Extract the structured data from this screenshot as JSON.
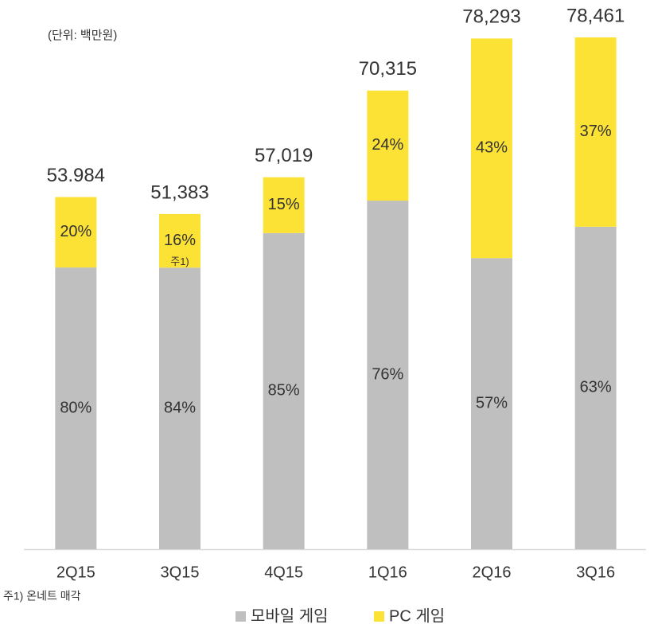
{
  "chart_data": {
    "type": "stacked_bar",
    "unit_label": "(단위: 백만원)",
    "footnote": "주1) 온네트 매각",
    "annotation": "주1)",
    "categories": [
      "2Q15",
      "3Q15",
      "4Q15",
      "1Q16",
      "2Q16",
      "3Q16"
    ],
    "totals": {
      "values": [
        53984,
        51383,
        57019,
        70315,
        78293,
        78461
      ],
      "value_labels": [
        "53.984",
        "51,383",
        "57,019",
        "70,315",
        "78,293",
        "78,461"
      ]
    },
    "series": [
      {
        "name": "모바일 게임",
        "color": "#bfbfbf",
        "values": [
          80,
          84,
          85,
          76,
          57,
          63
        ],
        "value_labels": [
          "80%",
          "84%",
          "85%",
          "76%",
          "57%",
          "63%"
        ]
      },
      {
        "name": "PC 게임",
        "color": "#fde236",
        "values": [
          20,
          16,
          15,
          24,
          43,
          37
        ],
        "value_labels": [
          "20%",
          "16%",
          "15%",
          "24%",
          "43%",
          "37%"
        ]
      }
    ]
  }
}
